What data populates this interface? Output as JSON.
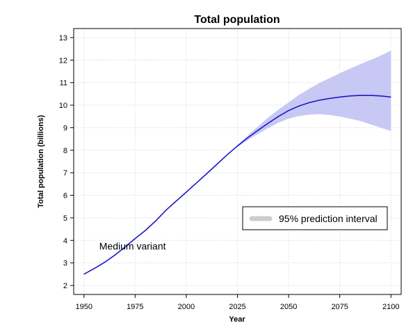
{
  "chart_data": {
    "type": "line",
    "title": "Total population",
    "xlabel": "Year",
    "ylabel": "Total population (billions)",
    "xlim": [
      1945,
      2105
    ],
    "ylim": [
      1.6,
      13.4
    ],
    "xticks": [
      1950,
      1975,
      2000,
      2025,
      2050,
      2075,
      2100
    ],
    "yticks": [
      2,
      3,
      4,
      5,
      6,
      7,
      8,
      9,
      10,
      11,
      12,
      13
    ],
    "grid": true,
    "legend_position": "bottom-right",
    "colors": {
      "line": "#1818c8",
      "band": "#c8c8f5",
      "legend_swatch": "#cccccc",
      "grid": "#c8c8c8"
    },
    "series": [
      {
        "name": "Medium variant",
        "x": [
          1950,
          1955,
          1960,
          1965,
          1970,
          1975,
          1980,
          1985,
          1990,
          1995,
          2000,
          2005,
          2010,
          2015,
          2020,
          2025,
          2030,
          2035,
          2040,
          2045,
          2050,
          2055,
          2060,
          2065,
          2070,
          2075,
          2080,
          2085,
          2090,
          2095,
          2100
        ],
        "y": [
          2.5,
          2.75,
          3.02,
          3.34,
          3.7,
          4.08,
          4.44,
          4.86,
          5.33,
          5.74,
          6.14,
          6.55,
          6.96,
          7.38,
          7.8,
          8.19,
          8.55,
          8.88,
          9.2,
          9.5,
          9.76,
          9.96,
          10.11,
          10.22,
          10.3,
          10.36,
          10.41,
          10.43,
          10.43,
          10.41,
          10.36
        ]
      }
    ],
    "interval": {
      "name": "95% prediction interval",
      "x": [
        2020,
        2025,
        2030,
        2035,
        2040,
        2045,
        2050,
        2055,
        2060,
        2065,
        2070,
        2075,
        2080,
        2085,
        2090,
        2095,
        2100
      ],
      "lower": [
        7.8,
        8.15,
        8.45,
        8.72,
        8.98,
        9.22,
        9.4,
        9.52,
        9.58,
        9.6,
        9.56,
        9.5,
        9.4,
        9.3,
        9.15,
        9.0,
        8.85
      ],
      "upper": [
        7.8,
        8.23,
        8.65,
        9.05,
        9.45,
        9.8,
        10.12,
        10.45,
        10.72,
        10.98,
        11.2,
        11.42,
        11.62,
        11.82,
        12.0,
        12.2,
        12.42
      ]
    },
    "annotations": [
      {
        "text": "Medium variant",
        "x": 1957.5,
        "y": 3.75
      }
    ]
  },
  "legend": {
    "label": "95% prediction interval"
  }
}
